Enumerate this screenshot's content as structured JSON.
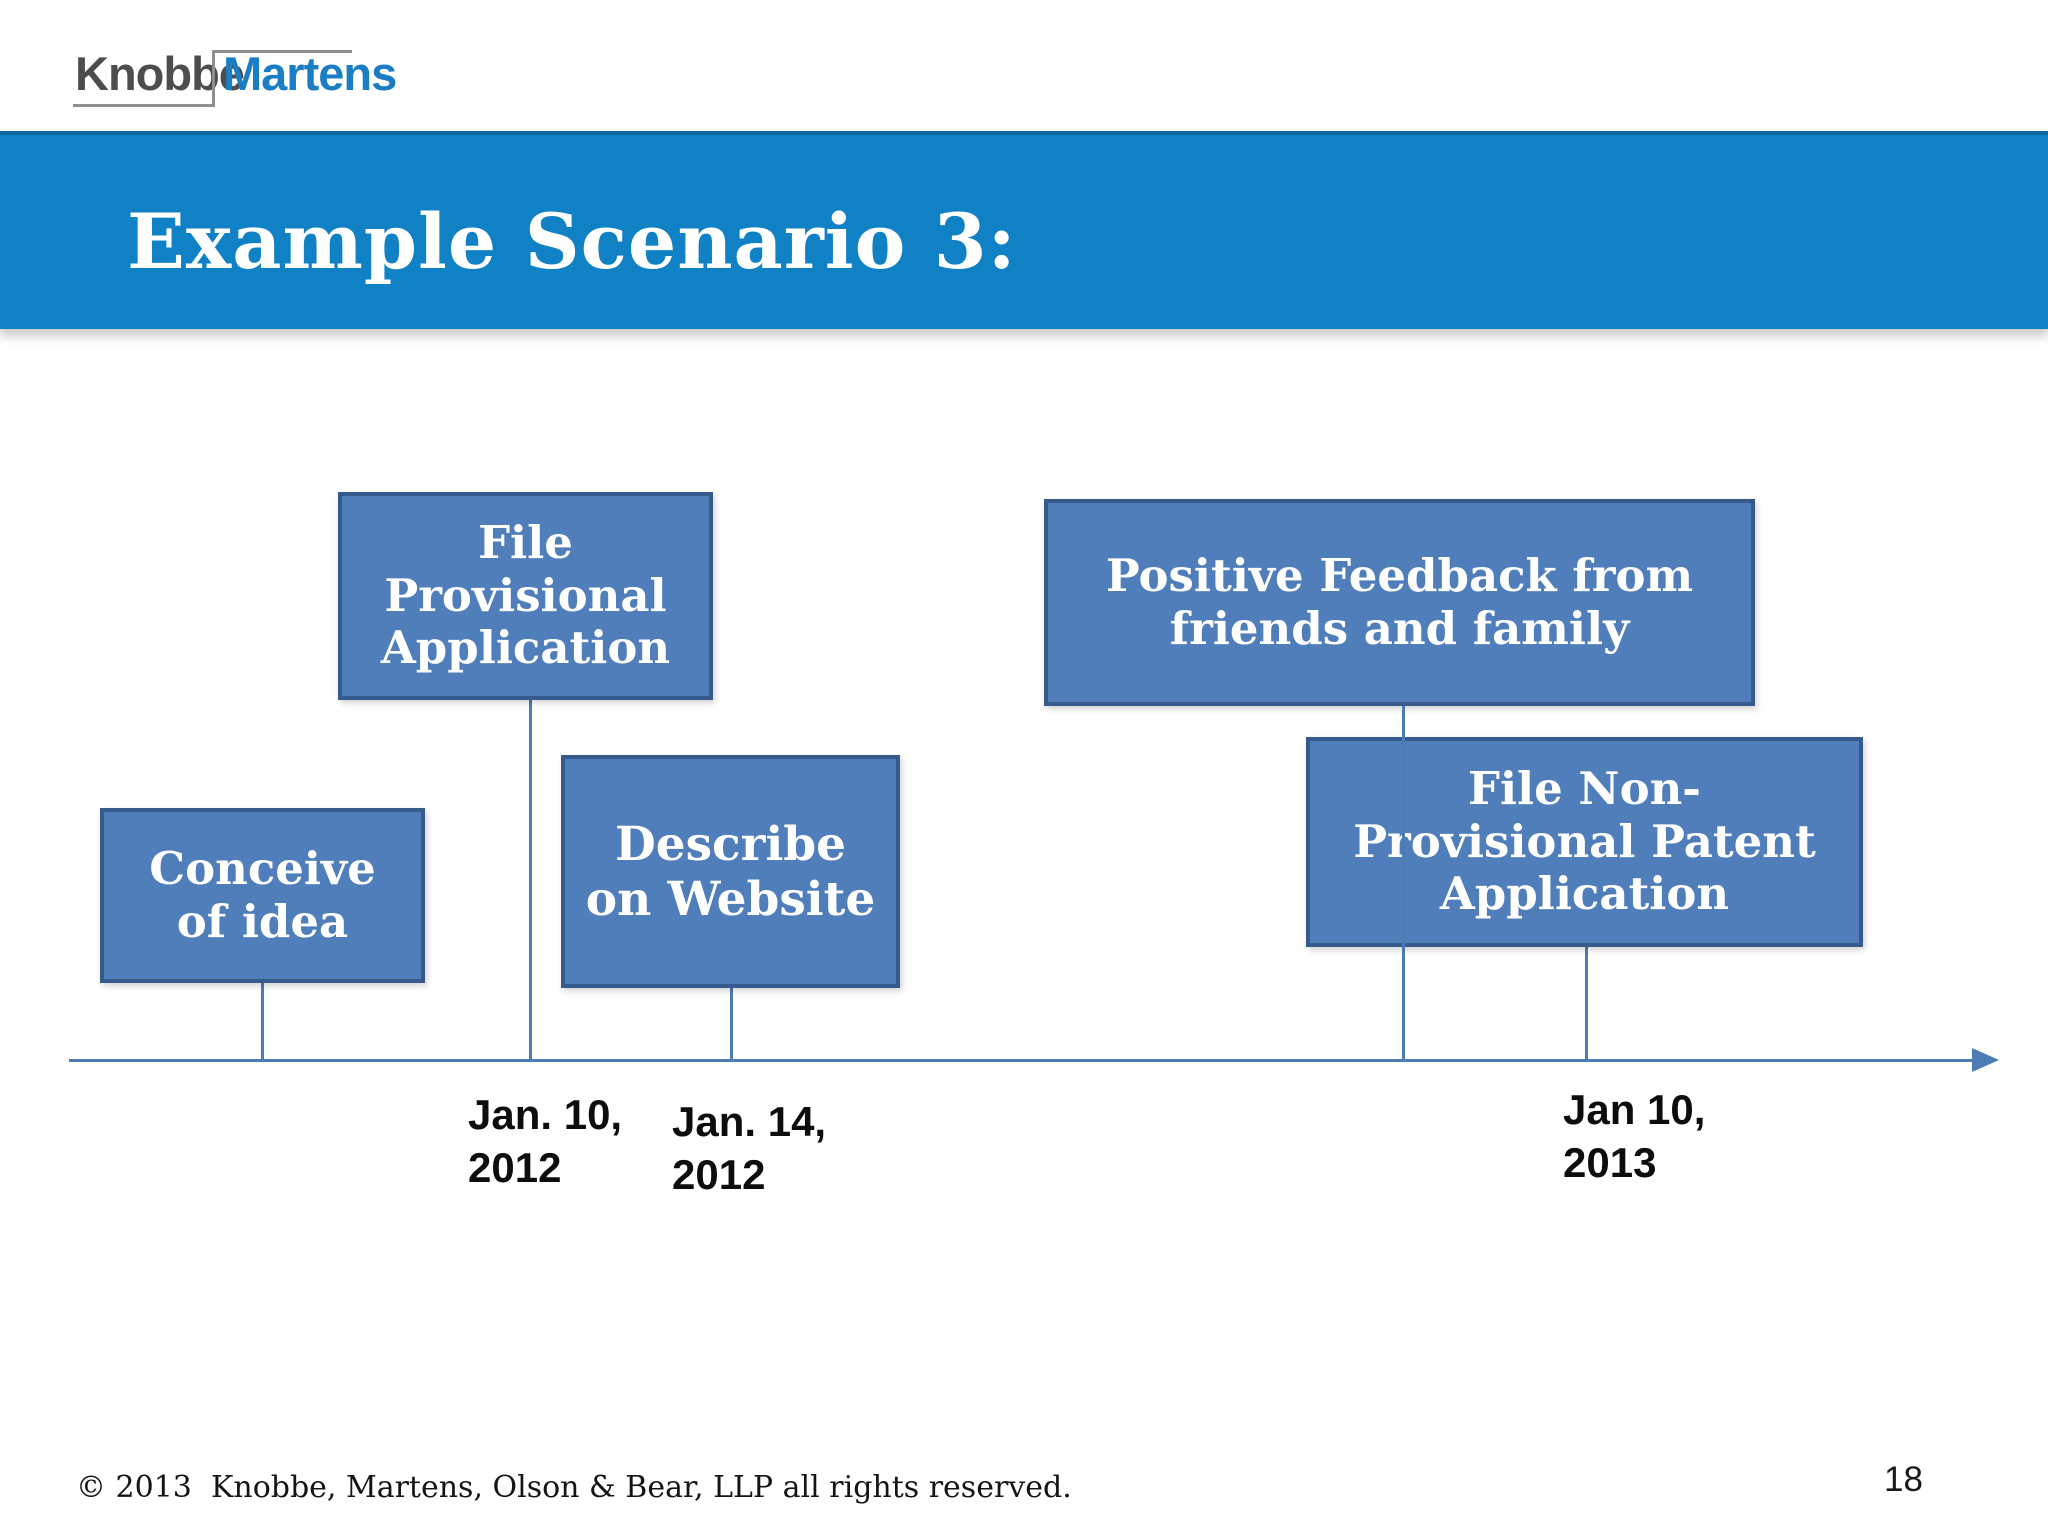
{
  "logo": {
    "left_text": "Knobbe",
    "right_text": "Martens",
    "left_color": "#4d4d4d",
    "right_color": "#1b7ec5"
  },
  "header": {
    "title": "Example Scenario 3:",
    "band_color": "#0f81c4",
    "text_color": "#ffffff"
  },
  "timeline": {
    "box_fill_color": "#4f7eba",
    "box_border_color": "#365a8c",
    "line_color": "#4d7bb3",
    "boxes": [
      {
        "id": "conceive-of-idea",
        "label": "Conceive\nof idea"
      },
      {
        "id": "file-provisional-application",
        "label": "File\nProvisional\nApplication"
      },
      {
        "id": "describe-on-website",
        "label": "Describe\non Website"
      },
      {
        "id": "positive-feedback",
        "label": "Positive Feedback from\nfriends and family"
      },
      {
        "id": "file-non-provisional-patent-application",
        "label": "File Non-\nProvisional Patent\nApplication"
      }
    ],
    "dates": [
      {
        "id": "date-1",
        "label": "Jan. 10,\n2012"
      },
      {
        "id": "date-2",
        "label": "Jan. 14,\n2012"
      },
      {
        "id": "date-3",
        "label": "Jan 10,\n2013"
      }
    ]
  },
  "footer": {
    "copyright": "© 2013  Knobbe, Martens, Olson & Bear, LLP all rights reserved.",
    "page_number": "18"
  }
}
